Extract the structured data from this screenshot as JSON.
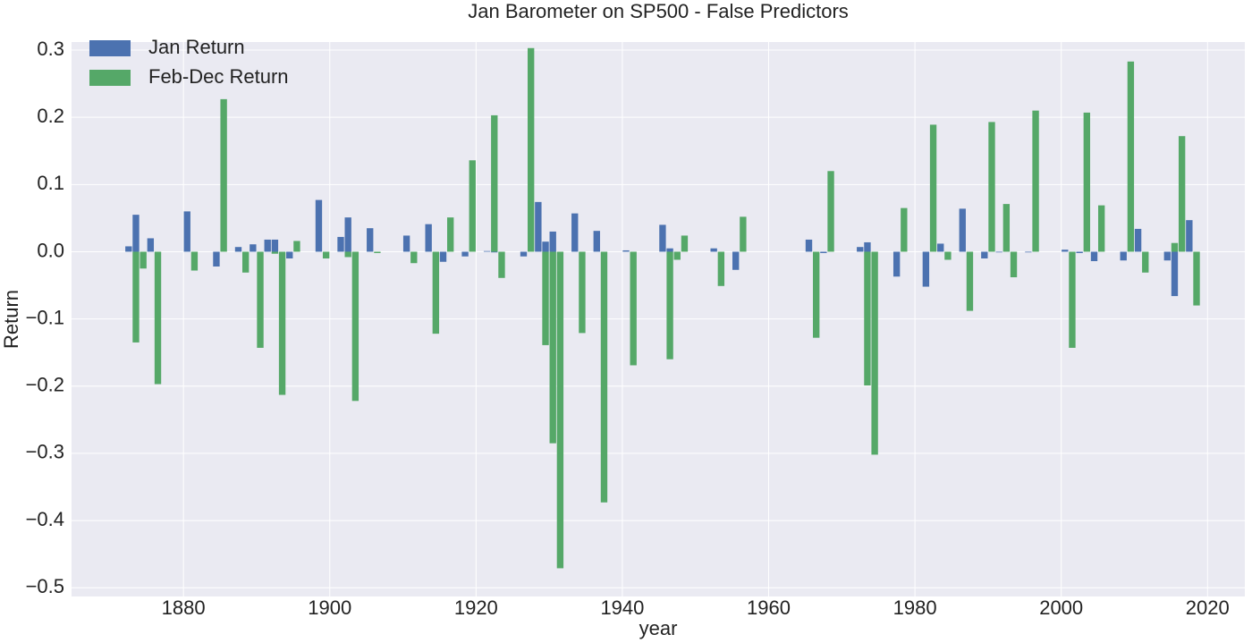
{
  "chart_data": {
    "type": "bar",
    "title": "Jan Barometer on SP500 - False Predictors",
    "xlabel": "year",
    "ylabel": "Return",
    "x": [
      1873,
      1874,
      1876,
      1881,
      1885,
      1888,
      1890,
      1892,
      1893,
      1895,
      1899,
      1902,
      1903,
      1906,
      1911,
      1914,
      1916,
      1919,
      1922,
      1923,
      1927,
      1929,
      1930,
      1931,
      1934,
      1937,
      1941,
      1946,
      1947,
      1948,
      1953,
      1956,
      1966,
      1968,
      1973,
      1974,
      1978,
      1982,
      1984,
      1987,
      1990,
      1992,
      1993,
      1996,
      2001,
      2003,
      2005,
      2009,
      2011,
      2015,
      2016,
      2018
    ],
    "series": [
      {
        "name": "Jan Return",
        "color": "#4c72b0",
        "values": [
          0.008,
          0.055,
          0.02,
          0.06,
          -0.022,
          0.007,
          0.011,
          0.018,
          0.018,
          -0.01,
          0.077,
          0.022,
          0.051,
          0.035,
          0.024,
          0.041,
          -0.015,
          -0.007,
          0.001,
          -0.001,
          -0.007,
          0.074,
          0.015,
          0.03,
          0.057,
          0.031,
          0.002,
          0.04,
          0.005,
          -0.001,
          0.005,
          -0.027,
          0.018,
          -0.002,
          0.007,
          0.014,
          -0.037,
          -0.052,
          0.012,
          0.064,
          -0.01,
          -0.001,
          0.001,
          -0.001,
          0.003,
          -0.002,
          -0.014,
          -0.013,
          0.034,
          -0.013,
          -0.066,
          0.047
        ]
      },
      {
        "name": "Feb-Dec Return",
        "color": "#55a868",
        "values": [
          -0.135,
          -0.025,
          -0.197,
          -0.028,
          0.227,
          -0.031,
          -0.143,
          -0.003,
          -0.213,
          0.016,
          -0.01,
          -0.008,
          -0.222,
          -0.002,
          -0.017,
          -0.122,
          0.051,
          0.136,
          0.203,
          -0.039,
          0.303,
          -0.139,
          -0.285,
          -0.471,
          -0.121,
          -0.373,
          -0.169,
          -0.16,
          -0.012,
          0.024,
          -0.051,
          0.052,
          -0.128,
          0.12,
          -0.199,
          -0.302,
          0.065,
          0.189,
          -0.012,
          -0.088,
          0.193,
          0.071,
          -0.038,
          0.21,
          -0.143,
          0.207,
          0.069,
          0.283,
          -0.031,
          0.013,
          0.172,
          -0.08
        ]
      }
    ],
    "xlim": [
      1864.7,
      2025.1
    ],
    "xticks": [
      1880,
      1900,
      1920,
      1940,
      1960,
      1980,
      2000,
      2020
    ],
    "ylim": [
      -0.513,
      0.312
    ],
    "yticks": [
      {
        "value": -0.5,
        "label": "−0.5"
      },
      {
        "value": -0.4,
        "label": "−0.4"
      },
      {
        "value": -0.3,
        "label": "−0.3"
      },
      {
        "value": -0.2,
        "label": "−0.2"
      },
      {
        "value": -0.1,
        "label": "−0.1"
      },
      {
        "value": 0,
        "label": "0.0"
      },
      0.1,
      0.2,
      0.3
    ],
    "grid": true,
    "legend": "upper left"
  }
}
